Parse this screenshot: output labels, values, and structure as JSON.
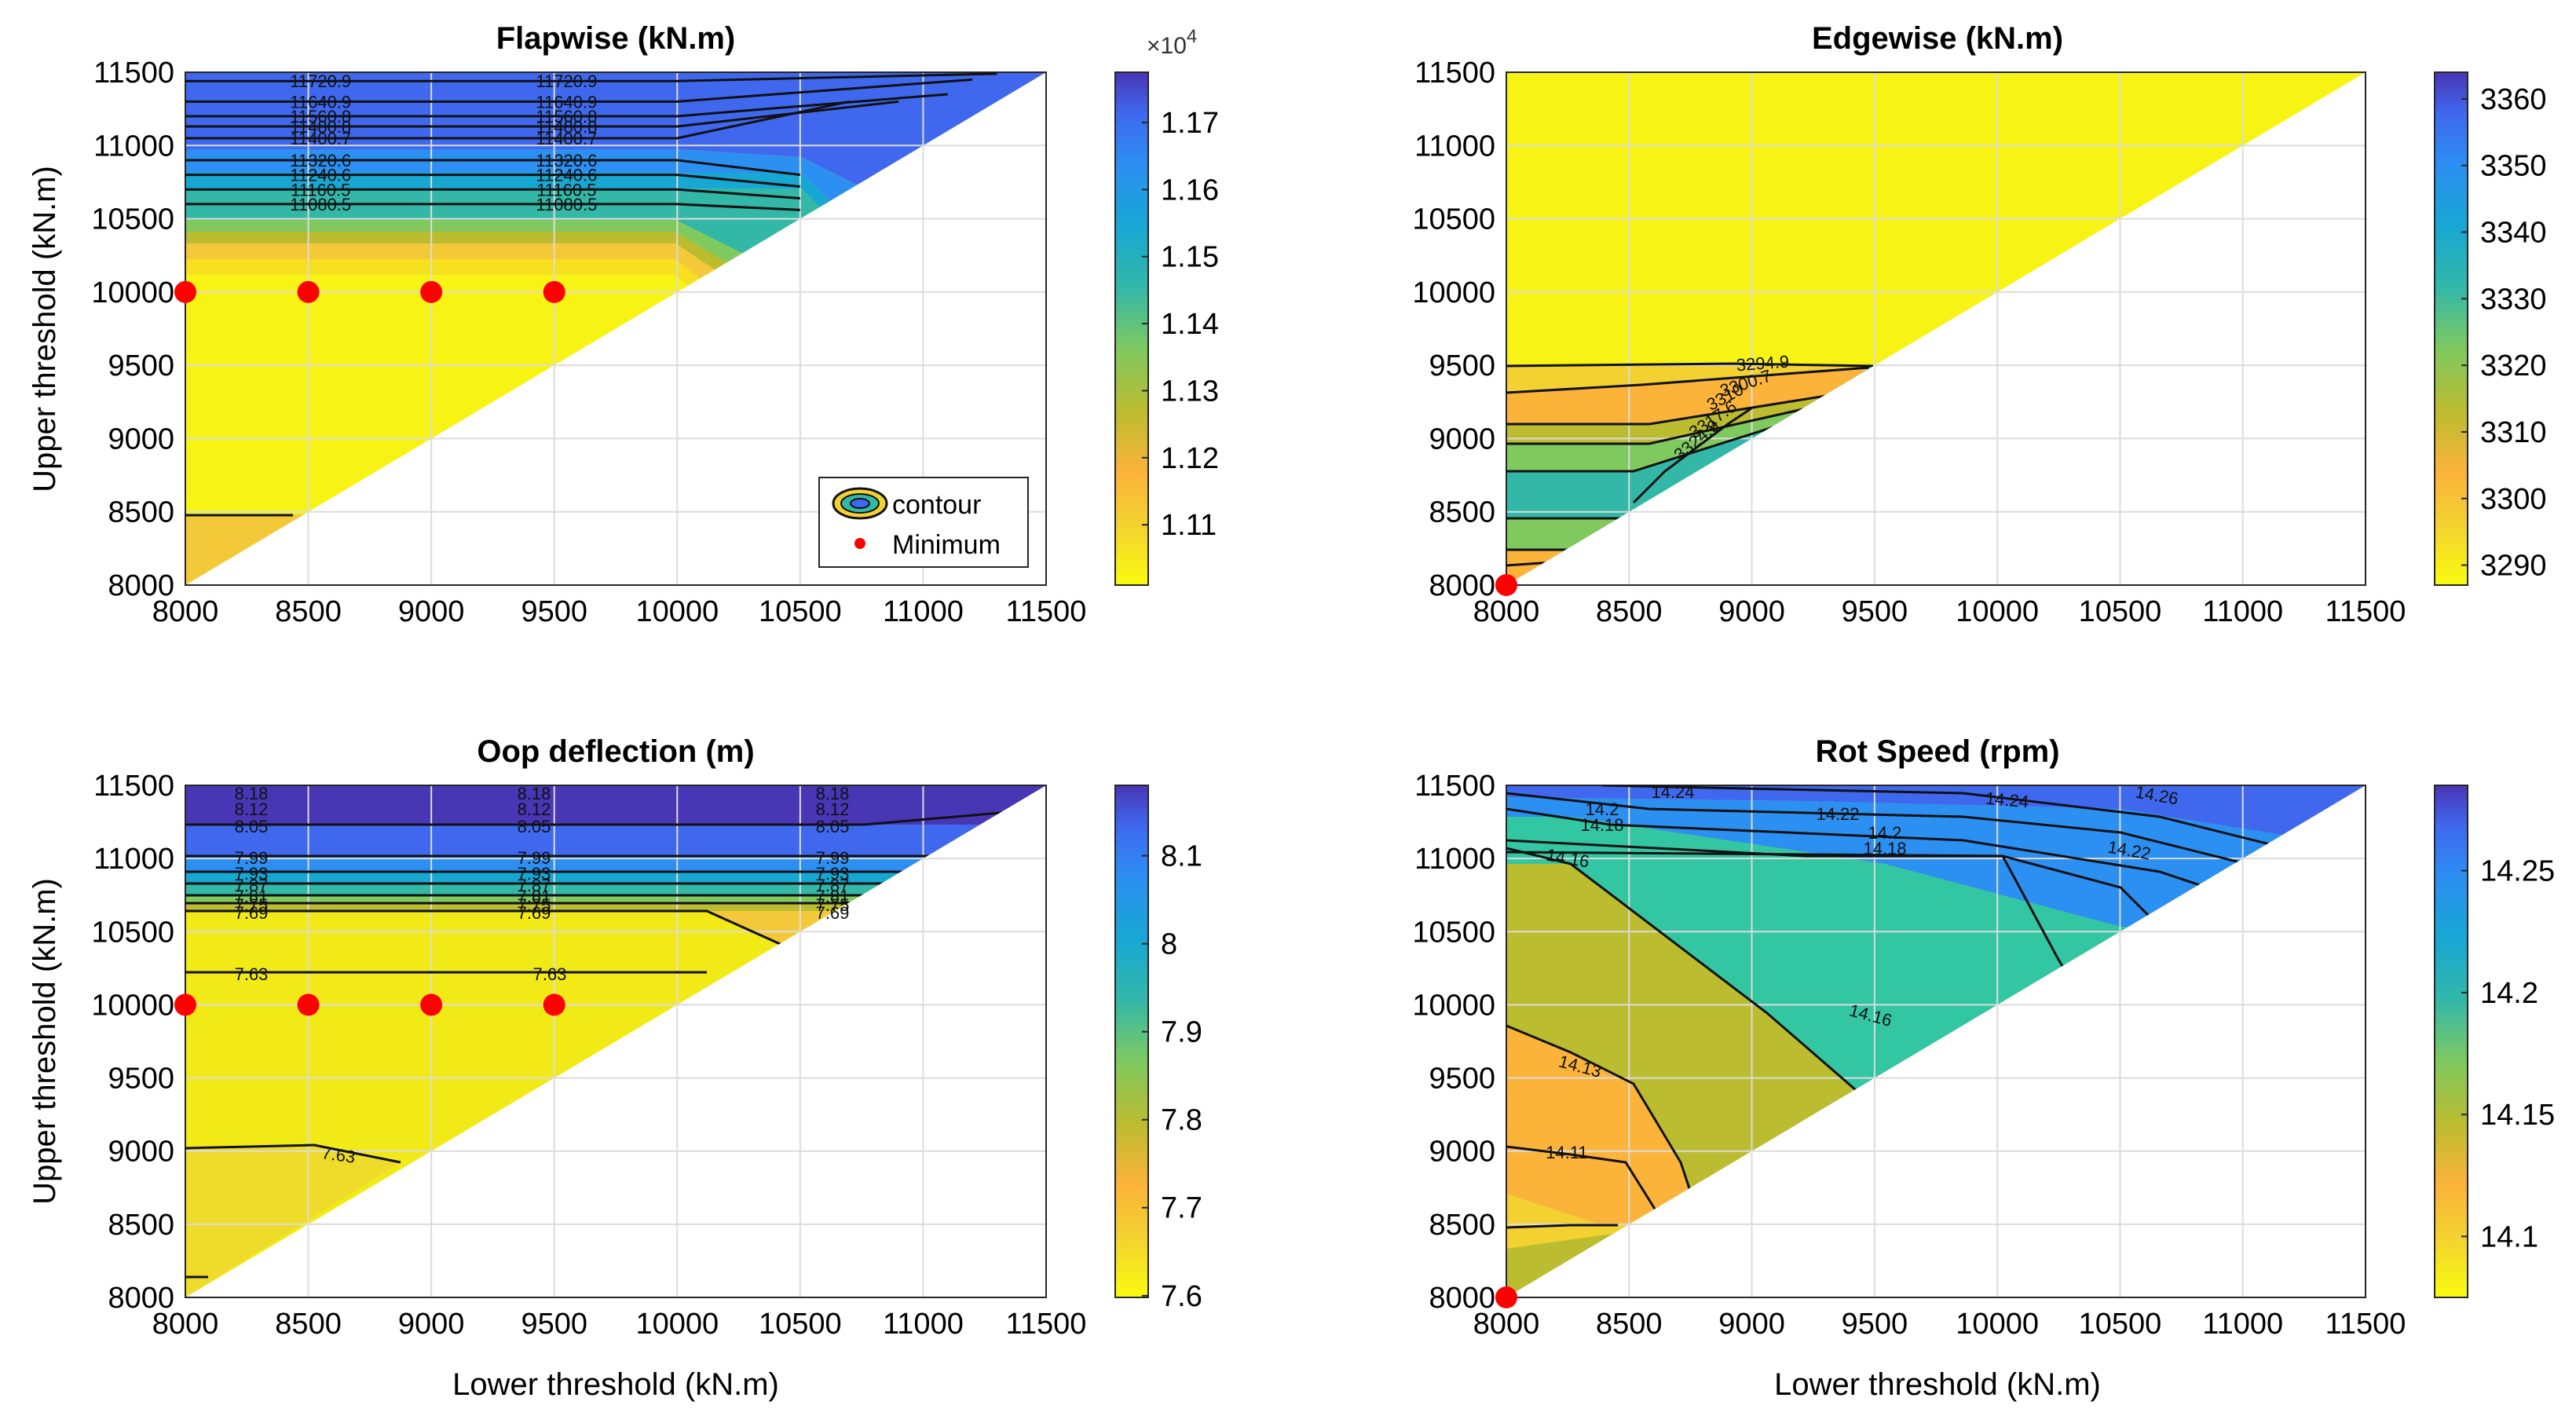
{
  "chart_data": [
    {
      "type": "contour",
      "title": "Flapwise (kN.m)",
      "xlabel": "",
      "ylabel": "Upper threshold (kN.m)",
      "xlim": [
        8000,
        11500
      ],
      "ylim": [
        8000,
        11500
      ],
      "xticks": [
        "8000",
        "8500",
        "9000",
        "9500",
        "10000",
        "10500",
        "11000",
        "11500"
      ],
      "yticks": [
        "8000",
        "8500",
        "9000",
        "9500",
        "10000",
        "10500",
        "11000",
        "11500"
      ],
      "colorbar": {
        "min": 11010,
        "max": 11775,
        "ticks": [
          "1.11",
          "1.12",
          "1.13",
          "1.14",
          "1.15",
          "1.16",
          "1.17"
        ],
        "tick_values": [
          11100,
          11200,
          11300,
          11400,
          11500,
          11600,
          11700
        ],
        "exponent_base": "×10",
        "exponent_power": "4"
      },
      "contour_levels": [
        {
          "y": 11080.5,
          "label": "11080.5",
          "xb": 10500,
          "yb": 10560
        },
        {
          "y": 11160.5,
          "label": "11160.5",
          "xb": 10500,
          "yb": 10640
        },
        {
          "y": 11240.6,
          "label": "11240.6",
          "xb": 10500,
          "yb": 10720
        },
        {
          "y": 11320.6,
          "label": "11320.6",
          "xb": 10500,
          "yb": 10800
        },
        {
          "y": 11400.7,
          "label": "11400.7",
          "xb": 10700,
          "yb": 11300
        },
        {
          "y": 11480.8,
          "label": "11480.8",
          "xb": 10900,
          "yb": 11300
        },
        {
          "y": 11560.8,
          "label": "11560.8",
          "xb": 11100,
          "yb": 11350
        },
        {
          "y": 11640.9,
          "label": "11640.9",
          "xb": 11200,
          "yb": 11450
        },
        {
          "y": 11720.9,
          "label": "11720.9",
          "xb": 11300,
          "yb": 11490
        }
      ],
      "minimum_points": [
        {
          "x": 8000,
          "y": 10000
        },
        {
          "x": 8500,
          "y": 10000
        },
        {
          "x": 9000,
          "y": 10000
        },
        {
          "x": 9500,
          "y": 10000
        }
      ],
      "legend": {
        "placement": "bottom-right",
        "entries": [
          "contour",
          "Minimum"
        ]
      }
    },
    {
      "type": "contour",
      "title": "Edgewise (kN.m)",
      "xlabel": "",
      "ylabel": "",
      "xlim": [
        8000,
        11500
      ],
      "ylim": [
        8000,
        11500
      ],
      "xticks": [
        "8000",
        "8500",
        "9000",
        "9500",
        "10000",
        "10500",
        "11000",
        "11500"
      ],
      "yticks": [
        "8000",
        "8500",
        "9000",
        "9500",
        "10000",
        "10500",
        "11000",
        "11500"
      ],
      "colorbar": {
        "min": 3287,
        "max": 3364,
        "ticks": [
          "3290",
          "3300",
          "3310",
          "3320",
          "3330",
          "3340",
          "3350",
          "3360"
        ],
        "tick_values": [
          3290,
          3300,
          3310,
          3320,
          3330,
          3340,
          3350,
          3360
        ]
      },
      "contour_labels": [
        "3294.9",
        "3300.7",
        "3310",
        "3317.6",
        "3324.9"
      ],
      "minimum_points": [
        {
          "x": 8000,
          "y": 8000
        }
      ]
    },
    {
      "type": "contour",
      "title": "Oop deflection (m)",
      "xlabel": "Lower threshold (kN.m)",
      "ylabel": "Upper threshold (kN.m)",
      "xlim": [
        8000,
        11500
      ],
      "ylim": [
        8000,
        11500
      ],
      "xticks": [
        "8000",
        "8500",
        "9000",
        "9500",
        "10000",
        "10500",
        "11000",
        "11500"
      ],
      "yticks": [
        "8000",
        "8500",
        "9000",
        "9500",
        "10000",
        "10500",
        "11000",
        "11500"
      ],
      "colorbar": {
        "min": 7.598,
        "max": 8.18,
        "ticks": [
          "7.6",
          "7.7",
          "7.8",
          "7.9",
          "8",
          "8.1"
        ],
        "tick_values": [
          7.6,
          7.7,
          7.8,
          7.9,
          8.0,
          8.1
        ]
      },
      "contour_levels": [
        {
          "y": 10200,
          "label": "7.63"
        },
        {
          "y": 10550,
          "label": "7.69"
        },
        {
          "y": 10650,
          "label": "7.75"
        },
        {
          "y": 10730,
          "label": "7.81"
        },
        {
          "y": 10800,
          "label": "7.87"
        },
        {
          "y": 10880,
          "label": "7.93"
        },
        {
          "y": 10960,
          "label": "7.99"
        },
        {
          "y": 11040,
          "label": "8.05"
        },
        {
          "y": 11260,
          "label": "8.12"
        },
        {
          "y": 11440,
          "label": "8.18"
        }
      ],
      "minimum_points": [
        {
          "x": 8000,
          "y": 10000
        },
        {
          "x": 8500,
          "y": 10000
        },
        {
          "x": 9000,
          "y": 10000
        },
        {
          "x": 9500,
          "y": 10000
        }
      ]
    },
    {
      "type": "contour",
      "title": "Rot Speed (rpm)",
      "xlabel": "Lower threshold (kN.m)",
      "ylabel": "",
      "xlim": [
        8000,
        11500
      ],
      "ylim": [
        8000,
        11500
      ],
      "xticks": [
        "8000",
        "8500",
        "9000",
        "9500",
        "10000",
        "10500",
        "11000",
        "11500"
      ],
      "yticks": [
        "8000",
        "8500",
        "9000",
        "9500",
        "10000",
        "10500",
        "11000",
        "11500"
      ],
      "colorbar": {
        "min": 14.075,
        "max": 14.285,
        "ticks": [
          "14.1",
          "14.15",
          "14.2",
          "14.25"
        ],
        "tick_values": [
          14.1,
          14.15,
          14.2,
          14.25
        ]
      },
      "contour_labels": [
        "14.11",
        "14.13",
        "14.16",
        "14.16",
        "14.18",
        "14.18",
        "14.2",
        "14.2",
        "14.22",
        "14.22",
        "14.24",
        "14.24",
        "14.26"
      ],
      "minimum_points": [
        {
          "x": 8000,
          "y": 8000
        }
      ]
    }
  ],
  "colormap": [
    "#f9fb0e",
    "#f3d131",
    "#fbb33a",
    "#bbbc30",
    "#7fc95f",
    "#33b8a8",
    "#17a7d3",
    "#2c8ff2",
    "#3f68ef",
    "#4836b5"
  ]
}
